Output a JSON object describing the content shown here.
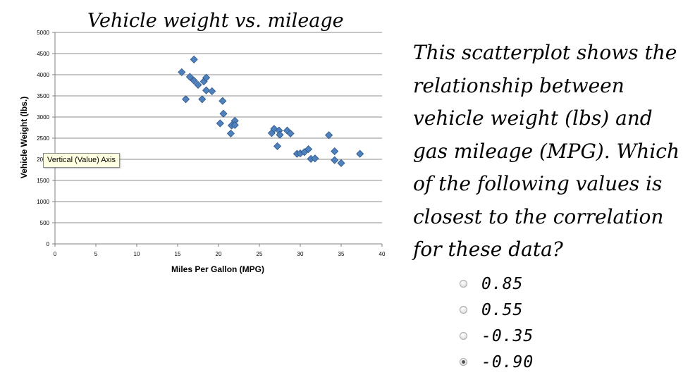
{
  "chart_data": {
    "type": "scatter",
    "title": "Vehicle weight vs. mileage",
    "xlabel": "Miles Per Gallon (MPG)",
    "ylabel": "Vehicle Weight (lbs.)",
    "xlim": [
      0,
      40
    ],
    "ylim": [
      0,
      5000
    ],
    "xticks": [
      0,
      5,
      10,
      15,
      20,
      25,
      30,
      35,
      40
    ],
    "yticks": [
      0,
      500,
      1000,
      1500,
      2000,
      2500,
      3000,
      3500,
      4000,
      4500,
      5000
    ],
    "grid": true,
    "marker_color": "#4f81bd",
    "points": [
      {
        "x": 15.5,
        "y": 4060
      },
      {
        "x": 16.0,
        "y": 3420
      },
      {
        "x": 16.5,
        "y": 3950
      },
      {
        "x": 17.0,
        "y": 4360
      },
      {
        "x": 17.0,
        "y": 3860
      },
      {
        "x": 17.5,
        "y": 3760
      },
      {
        "x": 18.0,
        "y": 3420
      },
      {
        "x": 18.2,
        "y": 3840
      },
      {
        "x": 18.5,
        "y": 3930
      },
      {
        "x": 18.5,
        "y": 3630
      },
      {
        "x": 19.2,
        "y": 3610
      },
      {
        "x": 20.2,
        "y": 2850
      },
      {
        "x": 20.5,
        "y": 3380
      },
      {
        "x": 20.6,
        "y": 3080
      },
      {
        "x": 21.5,
        "y": 2610
      },
      {
        "x": 21.6,
        "y": 2800
      },
      {
        "x": 22.0,
        "y": 2910
      },
      {
        "x": 22.0,
        "y": 2810
      },
      {
        "x": 26.5,
        "y": 2620
      },
      {
        "x": 26.8,
        "y": 2720
      },
      {
        "x": 27.2,
        "y": 2310
      },
      {
        "x": 27.4,
        "y": 2680
      },
      {
        "x": 27.5,
        "y": 2580
      },
      {
        "x": 28.4,
        "y": 2680
      },
      {
        "x": 28.8,
        "y": 2610
      },
      {
        "x": 29.6,
        "y": 2130
      },
      {
        "x": 30.0,
        "y": 2140
      },
      {
        "x": 30.5,
        "y": 2170
      },
      {
        "x": 31.0,
        "y": 2240
      },
      {
        "x": 31.3,
        "y": 2010
      },
      {
        "x": 31.8,
        "y": 2020
      },
      {
        "x": 33.5,
        "y": 2570
      },
      {
        "x": 34.2,
        "y": 2190
      },
      {
        "x": 34.2,
        "y": 1980
      },
      {
        "x": 35.0,
        "y": 1910
      },
      {
        "x": 37.3,
        "y": 2130
      }
    ]
  },
  "tooltip": "Vertical (Value) Axis",
  "question_lines": [
    "This scatterplot shows the",
    "relationship between",
    "vehicle weight (lbs) and",
    "gas mileage (MPG). Which",
    "of the following values is",
    "closest to the correlation",
    "for these data?"
  ],
  "options": [
    {
      "label": "0.85",
      "selected": false
    },
    {
      "label": "0.55",
      "selected": false
    },
    {
      "label": "-0.35",
      "selected": false
    },
    {
      "label": "-0.90",
      "selected": true
    }
  ]
}
